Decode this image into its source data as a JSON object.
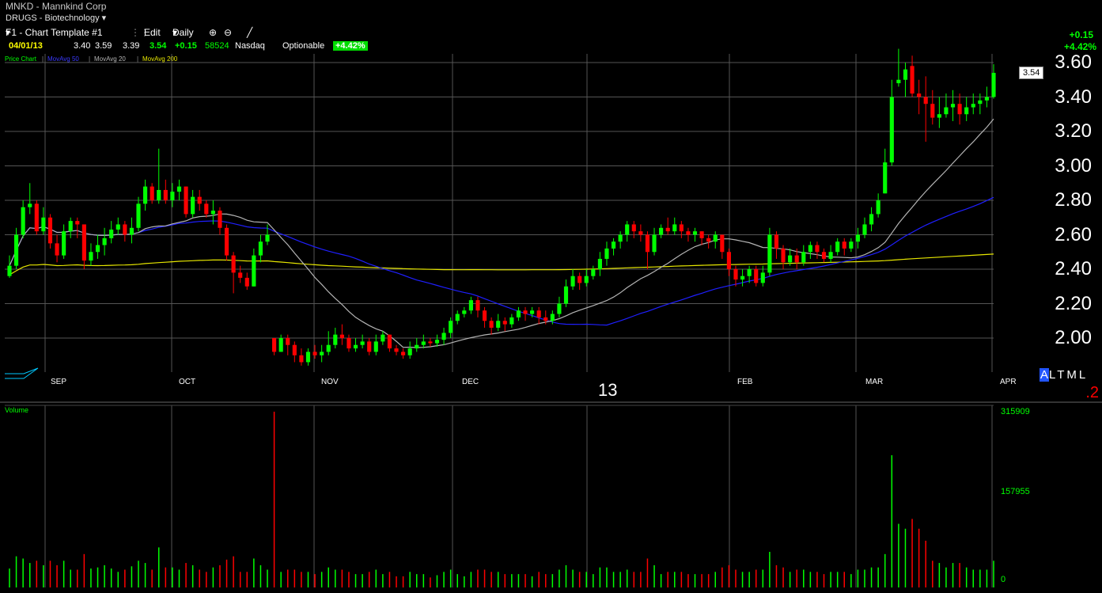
{
  "header": {
    "title": "MNKD - Mannkind Corp",
    "sector": "DRUGS - Biotechnology",
    "template": "F1 - Chart Template #1",
    "edit_label": "Edit",
    "period_label": "Daily",
    "change_abs": "+0.15",
    "change_pct": "+4.42%"
  },
  "quote": {
    "date": "04/01/13",
    "open": "3.40",
    "high": "3.59",
    "low": "3.39",
    "last": "3.54",
    "change": "+0.15",
    "volume": "58524",
    "exchange": "Nasdaq",
    "optionable": "Optionable",
    "pct_badge": "+4.42%"
  },
  "legend": {
    "price_chart": "Price Chart",
    "ma50": "MovAvg 50",
    "ma20": "MovAvg 20",
    "ma200": "MovAvg 200"
  },
  "center_label": "13",
  "altml": {
    "a": "A",
    "rest": "LTML"
  },
  "corner_number": ".2",
  "volume_panel": {
    "label": "Volume",
    "max": "315909",
    "mid": "157955",
    "zero": "0"
  },
  "colors": {
    "up": "#00ff00",
    "down": "#ff0000",
    "ma50": "#1f1fff",
    "ma20": "#b4b4b4",
    "ma200": "#e6e600",
    "grid": "#555555"
  },
  "chart_data": {
    "type": "candlestick",
    "ylim": [
      1.84,
      3.68
    ],
    "yticks": [
      "3.60",
      "3.40",
      "3.20",
      "3.00",
      "2.80",
      "2.60",
      "2.40",
      "2.20",
      "2.00"
    ],
    "last_price_label": "3.54",
    "months": [
      "SEP",
      "OCT",
      "NOV",
      "DEC",
      "FEB",
      "MAR",
      "APR"
    ],
    "candles": [
      [
        2.36,
        2.42,
        2.48,
        2.35
      ],
      [
        2.42,
        2.6,
        2.64,
        2.4
      ],
      [
        2.6,
        2.76,
        2.8,
        2.58
      ],
      [
        2.76,
        2.78,
        2.9,
        2.72
      ],
      [
        2.78,
        2.62,
        2.8,
        2.6
      ],
      [
        2.62,
        2.7,
        2.76,
        2.6
      ],
      [
        2.7,
        2.55,
        2.72,
        2.52
      ],
      [
        2.55,
        2.48,
        2.6,
        2.44
      ],
      [
        2.48,
        2.62,
        2.66,
        2.46
      ],
      [
        2.62,
        2.68,
        2.7,
        2.58
      ],
      [
        2.68,
        2.66,
        2.7,
        2.58
      ],
      [
        2.66,
        2.45,
        2.66,
        2.4
      ],
      [
        2.45,
        2.5,
        2.55,
        2.42
      ],
      [
        2.5,
        2.54,
        2.6,
        2.46
      ],
      [
        2.54,
        2.58,
        2.64,
        2.48
      ],
      [
        2.58,
        2.63,
        2.68,
        2.55
      ],
      [
        2.63,
        2.66,
        2.7,
        2.6
      ],
      [
        2.66,
        2.6,
        2.68,
        2.56
      ],
      [
        2.6,
        2.64,
        2.7,
        2.55
      ],
      [
        2.64,
        2.78,
        2.82,
        2.62
      ],
      [
        2.78,
        2.88,
        2.92,
        2.74
      ],
      [
        2.88,
        2.8,
        2.9,
        2.78
      ],
      [
        2.8,
        2.86,
        3.1,
        2.78
      ],
      [
        2.86,
        2.8,
        2.92,
        2.78
      ],
      [
        2.8,
        2.85,
        2.9,
        2.76
      ],
      [
        2.85,
        2.88,
        2.92,
        2.8
      ],
      [
        2.88,
        2.72,
        2.88,
        2.7
      ],
      [
        2.72,
        2.82,
        2.86,
        2.7
      ],
      [
        2.82,
        2.78,
        2.86,
        2.74
      ],
      [
        2.78,
        2.72,
        2.8,
        2.7
      ],
      [
        2.72,
        2.74,
        2.8,
        2.66
      ],
      [
        2.74,
        2.64,
        2.76,
        2.6
      ],
      [
        2.64,
        2.48,
        2.66,
        2.45
      ],
      [
        2.48,
        2.38,
        2.5,
        2.26
      ],
      [
        2.38,
        2.35,
        2.42,
        2.32
      ],
      [
        2.35,
        2.3,
        2.38,
        2.28
      ],
      [
        2.3,
        2.48,
        2.52,
        2.3
      ],
      [
        2.48,
        2.56,
        2.6,
        2.44
      ],
      [
        2.56,
        2.6,
        2.66,
        2.54
      ],
      [
        2.0,
        1.92,
        2.0,
        1.9
      ],
      [
        1.92,
        2.0,
        2.02,
        1.92
      ],
      [
        2.0,
        1.96,
        2.02,
        1.9
      ],
      [
        1.96,
        1.9,
        1.98,
        1.86
      ],
      [
        1.9,
        1.86,
        1.94,
        1.84
      ],
      [
        1.86,
        1.92,
        1.94,
        1.84
      ],
      [
        1.92,
        1.9,
        1.96,
        1.88
      ],
      [
        1.9,
        1.92,
        1.96,
        1.86
      ],
      [
        1.92,
        1.96,
        2.04,
        1.9
      ],
      [
        1.96,
        2.02,
        2.06,
        1.94
      ],
      [
        2.02,
        2.0,
        2.08,
        1.96
      ],
      [
        2.0,
        1.94,
        2.02,
        1.92
      ],
      [
        1.94,
        1.96,
        2.0,
        1.92
      ],
      [
        1.96,
        1.98,
        2.02,
        1.94
      ],
      [
        1.98,
        1.92,
        2.0,
        1.9
      ],
      [
        1.92,
        1.98,
        2.02,
        1.9
      ],
      [
        1.98,
        2.02,
        2.04,
        1.96
      ],
      [
        2.02,
        1.94,
        2.02,
        1.92
      ],
      [
        1.94,
        1.92,
        1.96,
        1.9
      ],
      [
        1.92,
        1.9,
        1.94,
        1.88
      ],
      [
        1.9,
        1.94,
        1.98,
        1.88
      ],
      [
        1.94,
        1.96,
        2.0,
        1.92
      ],
      [
        1.96,
        1.98,
        2.02,
        1.94
      ],
      [
        1.98,
        1.97,
        2.0,
        1.95
      ],
      [
        1.97,
        1.99,
        2.02,
        1.95
      ],
      [
        1.99,
        2.03,
        2.06,
        1.96
      ],
      [
        2.03,
        2.1,
        2.12,
        2.0
      ],
      [
        2.1,
        2.14,
        2.16,
        2.08
      ],
      [
        2.14,
        2.16,
        2.18,
        2.12
      ],
      [
        2.16,
        2.22,
        2.24,
        2.14
      ],
      [
        2.22,
        2.16,
        2.24,
        2.12
      ],
      [
        2.16,
        2.1,
        2.18,
        2.06
      ],
      [
        2.1,
        2.06,
        2.12,
        2.02
      ],
      [
        2.06,
        2.1,
        2.14,
        2.04
      ],
      [
        2.1,
        2.08,
        2.12,
        2.04
      ],
      [
        2.08,
        2.12,
        2.14,
        2.06
      ],
      [
        2.12,
        2.16,
        2.18,
        2.1
      ],
      [
        2.16,
        2.14,
        2.18,
        2.1
      ],
      [
        2.14,
        2.16,
        2.18,
        2.12
      ],
      [
        2.16,
        2.12,
        2.18,
        2.08
      ],
      [
        2.12,
        2.1,
        2.16,
        2.08
      ],
      [
        2.1,
        2.14,
        2.16,
        2.08
      ],
      [
        2.14,
        2.2,
        2.24,
        2.12
      ],
      [
        2.2,
        2.3,
        2.34,
        2.18
      ],
      [
        2.3,
        2.36,
        2.4,
        2.28
      ],
      [
        2.36,
        2.32,
        2.38,
        2.28
      ],
      [
        2.32,
        2.36,
        2.4,
        2.3
      ],
      [
        2.36,
        2.4,
        2.42,
        2.34
      ],
      [
        2.4,
        2.46,
        2.5,
        2.36
      ],
      [
        2.46,
        2.52,
        2.56,
        2.42
      ],
      [
        2.52,
        2.56,
        2.58,
        2.48
      ],
      [
        2.56,
        2.6,
        2.62,
        2.52
      ],
      [
        2.6,
        2.66,
        2.68,
        2.56
      ],
      [
        2.66,
        2.62,
        2.68,
        2.58
      ],
      [
        2.62,
        2.6,
        2.66,
        2.56
      ],
      [
        2.6,
        2.5,
        2.62,
        2.4
      ],
      [
        2.5,
        2.6,
        2.64,
        2.48
      ],
      [
        2.6,
        2.64,
        2.66,
        2.58
      ],
      [
        2.64,
        2.62,
        2.7,
        2.6
      ],
      [
        2.62,
        2.66,
        2.7,
        2.6
      ],
      [
        2.66,
        2.62,
        2.68,
        2.58
      ],
      [
        2.62,
        2.6,
        2.64,
        2.56
      ],
      [
        2.6,
        2.62,
        2.64,
        2.56
      ],
      [
        2.62,
        2.58,
        2.62,
        2.54
      ],
      [
        2.58,
        2.56,
        2.6,
        2.52
      ],
      [
        2.56,
        2.6,
        2.62,
        2.52
      ],
      [
        2.6,
        2.5,
        2.6,
        2.46
      ],
      [
        2.5,
        2.4,
        2.52,
        2.36
      ],
      [
        2.4,
        2.34,
        2.42,
        2.3
      ],
      [
        2.34,
        2.36,
        2.4,
        2.3
      ],
      [
        2.36,
        2.4,
        2.42,
        2.32
      ],
      [
        2.4,
        2.32,
        2.42,
        2.3
      ],
      [
        2.32,
        2.38,
        2.42,
        2.3
      ],
      [
        2.38,
        2.6,
        2.64,
        2.36
      ],
      [
        2.6,
        2.52,
        2.62,
        2.46
      ],
      [
        2.52,
        2.44,
        2.54,
        2.4
      ],
      [
        2.44,
        2.48,
        2.52,
        2.42
      ],
      [
        2.48,
        2.44,
        2.52,
        2.4
      ],
      [
        2.44,
        2.5,
        2.54,
        2.42
      ],
      [
        2.5,
        2.54,
        2.56,
        2.46
      ],
      [
        2.54,
        2.5,
        2.56,
        2.46
      ],
      [
        2.5,
        2.46,
        2.52,
        2.44
      ],
      [
        2.46,
        2.5,
        2.54,
        2.44
      ],
      [
        2.5,
        2.56,
        2.58,
        2.48
      ],
      [
        2.56,
        2.52,
        2.58,
        2.48
      ],
      [
        2.52,
        2.56,
        2.58,
        2.5
      ],
      [
        2.56,
        2.6,
        2.64,
        2.52
      ],
      [
        2.6,
        2.66,
        2.7,
        2.58
      ],
      [
        2.66,
        2.72,
        2.76,
        2.62
      ],
      [
        2.72,
        2.8,
        2.84,
        2.7
      ],
      [
        2.84,
        3.02,
        3.1,
        2.84
      ],
      [
        3.02,
        3.4,
        3.5,
        3.0
      ],
      [
        3.48,
        3.5,
        3.68,
        3.46
      ],
      [
        3.5,
        3.56,
        3.6,
        3.4
      ],
      [
        3.58,
        3.42,
        3.64,
        3.4
      ],
      [
        3.42,
        3.4,
        3.5,
        3.3
      ],
      [
        3.4,
        3.36,
        3.52,
        3.14
      ],
      [
        3.36,
        3.28,
        3.44,
        3.24
      ],
      [
        3.28,
        3.3,
        3.4,
        3.22
      ],
      [
        3.3,
        3.34,
        3.42,
        3.28
      ],
      [
        3.34,
        3.36,
        3.44,
        3.26
      ],
      [
        3.36,
        3.3,
        3.42,
        3.24
      ],
      [
        3.3,
        3.34,
        3.4,
        3.26
      ],
      [
        3.34,
        3.36,
        3.42,
        3.3
      ],
      [
        3.36,
        3.38,
        3.42,
        3.3
      ],
      [
        3.38,
        3.4,
        3.46,
        3.34
      ],
      [
        3.4,
        3.54,
        3.59,
        3.39
      ]
    ],
    "volume_scale": 315909
  }
}
